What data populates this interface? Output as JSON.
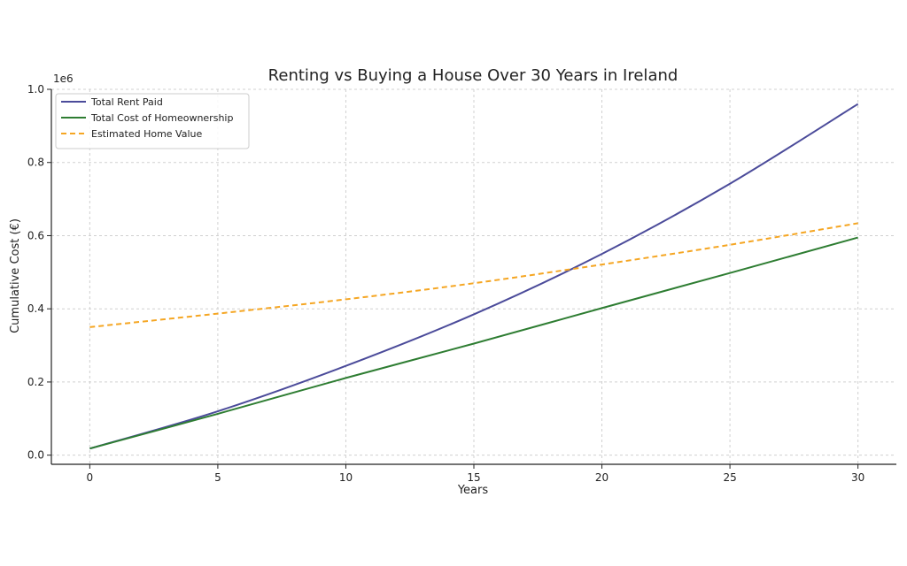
{
  "chart_data": {
    "type": "line",
    "title": "Renting vs Buying a House Over 30 Years in Ireland",
    "xlabel": "Years",
    "ylabel": "Cumulative Cost (€)",
    "offset_label": "1e6",
    "xlim": [
      -1.5,
      31.5
    ],
    "ylim": [
      -0.025,
      1.0
    ],
    "xticks": [
      0,
      5,
      10,
      15,
      20,
      25,
      30
    ],
    "yticks": [
      0.0,
      0.2,
      0.4,
      0.6,
      0.8,
      1.0
    ],
    "ytick_labels": [
      "0.0",
      "0.2",
      "0.4",
      "0.6",
      "0.8",
      "1.0"
    ],
    "grid": true,
    "legend_position": "top-left",
    "x": [
      0,
      5,
      10,
      15,
      20,
      25,
      30
    ],
    "series": [
      {
        "name": "Total Rent Paid",
        "color": "#4b4b9a",
        "style": "solid",
        "values": [
          0.018,
          0.12,
          0.244,
          0.385,
          0.55,
          0.742,
          0.96
        ]
      },
      {
        "name": "Total Cost of Homeownership",
        "color": "#2e7d32",
        "style": "solid",
        "values": [
          0.018,
          0.113,
          0.211,
          0.305,
          0.402,
          0.498,
          0.595
        ]
      },
      {
        "name": "Estimated Home Value",
        "color": "#f5a623",
        "style": "dashed",
        "values": [
          0.35,
          0.387,
          0.426,
          0.47,
          0.521,
          0.575,
          0.634
        ]
      }
    ]
  }
}
